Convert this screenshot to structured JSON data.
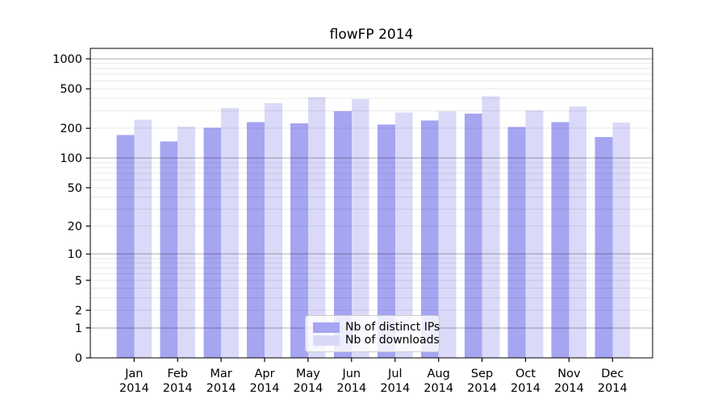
{
  "title": "flowFP 2014",
  "colors": {
    "bar_distinct_ips": "#a5a5f2",
    "bar_downloads": "#dadaf8",
    "major_grid": "#aaaaaa",
    "minor_grid": "#e9e9e9",
    "axis": "#000000",
    "legend_border": "#cccccc"
  },
  "legend": {
    "items": [
      {
        "label": "Nb of distinct IPs",
        "color": "#a5a5f2"
      },
      {
        "label": "Nb of downloads",
        "color": "#dadaf8"
      }
    ]
  },
  "chart_data": {
    "type": "bar",
    "title": "flowFP 2014",
    "categories": [
      "Jan 2014",
      "Feb 2014",
      "Mar 2014",
      "Apr 2014",
      "May 2014",
      "Jun 2014",
      "Jul 2014",
      "Aug 2014",
      "Sep 2014",
      "Oct 2014",
      "Nov 2014",
      "Dec 2014"
    ],
    "series": [
      {
        "name": "Nb of distinct IPs",
        "color": "#a5a5f2",
        "values": [
          172,
          147,
          202,
          230,
          224,
          297,
          218,
          239,
          280,
          207,
          232,
          163
        ]
      },
      {
        "name": "Nb of downloads",
        "color": "#dadaf8",
        "values": [
          245,
          208,
          320,
          357,
          412,
          392,
          290,
          296,
          422,
          303,
          333,
          229
        ]
      }
    ],
    "xlabel": "",
    "ylabel": "",
    "y_axis": {
      "scale": "log1p",
      "ticks": [
        0,
        1,
        2,
        5,
        10,
        20,
        50,
        100,
        200,
        500,
        1000
      ],
      "range": [
        0,
        1000
      ]
    },
    "grid": true,
    "legend_position": "lower center"
  }
}
